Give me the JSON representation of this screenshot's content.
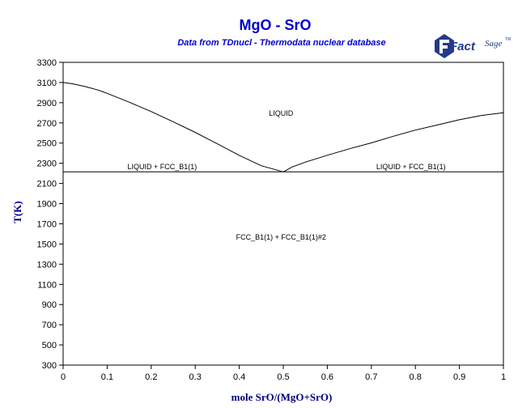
{
  "header": {
    "title": "MgO - SrO",
    "subtitle": "Data from TDnucl - Thermodata nuclear database"
  },
  "logo": {
    "name": "FactSage",
    "brand": "Fact",
    "sub": "Sage",
    "tm": "TM",
    "color": "#243a8a"
  },
  "colors": {
    "title": "#0000cc",
    "axis_label": "#000080",
    "line": "#000000"
  },
  "chart_data": {
    "type": "line",
    "title": "MgO - SrO",
    "subtitle": "Data from TDnucl - Thermodata nuclear database",
    "xlabel": "mole SrO/(MgO+SrO)",
    "ylabel": "T(K)",
    "xlim": [
      0,
      1
    ],
    "ylim": [
      300,
      3300
    ],
    "xticks": [
      0,
      0.1,
      0.2,
      0.3,
      0.4,
      0.5,
      0.6,
      0.7,
      0.8,
      0.9,
      1
    ],
    "xtick_labels": [
      "0",
      "0.1",
      "0.2",
      "0.3",
      "0.4",
      "0.5",
      "0.6",
      "0.7",
      "0.8",
      "0.9",
      "1"
    ],
    "yticks": [
      300,
      500,
      700,
      900,
      1100,
      1300,
      1500,
      1700,
      1900,
      2100,
      2300,
      2500,
      2700,
      2900,
      3100,
      3300
    ],
    "ytick_labels": [
      "300",
      "500",
      "700",
      "900",
      "1100",
      "1300",
      "1500",
      "1700",
      "1900",
      "2100",
      "2300",
      "2500",
      "2700",
      "2900",
      "3100",
      "3300"
    ],
    "grid": false,
    "series": [
      {
        "id": "liquidus-mgo",
        "x": [
          0,
          0.02,
          0.05,
          0.08,
          0.1,
          0.15,
          0.2,
          0.25,
          0.3,
          0.35,
          0.4,
          0.45,
          0.5
        ],
        "y": [
          3100,
          3088,
          3060,
          3025,
          2993,
          2905,
          2812,
          2711,
          2606,
          2493,
          2378,
          2276,
          2215
        ]
      },
      {
        "id": "liquidus-sro",
        "x": [
          0.5,
          0.52,
          0.55,
          0.6,
          0.65,
          0.7,
          0.75,
          0.8,
          0.85,
          0.9,
          0.95,
          1
        ],
        "y": [
          2215,
          2263,
          2311,
          2379,
          2443,
          2502,
          2568,
          2629,
          2679,
          2731,
          2774,
          2800
        ]
      },
      {
        "id": "eutectic-line",
        "x": [
          0,
          1
        ],
        "y": [
          2215,
          2215
        ]
      }
    ],
    "annotations": [
      {
        "text": "LIQUID",
        "x": 0.495,
        "y": 2770
      },
      {
        "text": "LIQUID + FCC_B1(1)",
        "x": 0.225,
        "y": 2240
      },
      {
        "text": "LIQUID + FCC_B1(1)",
        "x": 0.79,
        "y": 2240
      },
      {
        "text": "FCC_B1(1) + FCC_B1(1)#2",
        "x": 0.495,
        "y": 1545
      }
    ]
  }
}
